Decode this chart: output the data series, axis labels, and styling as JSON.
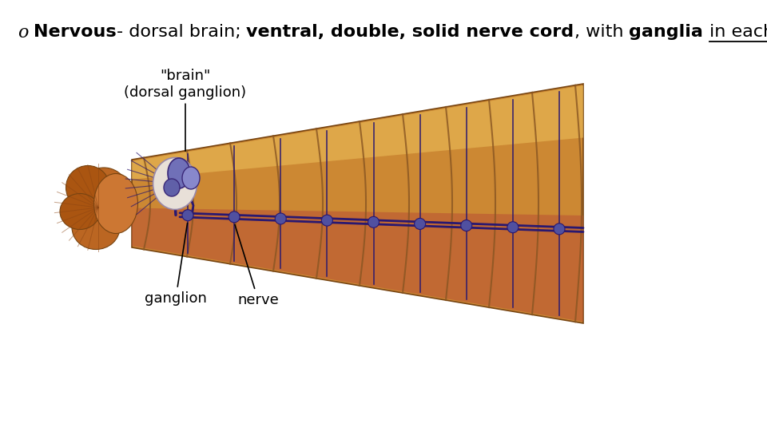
{
  "background_color": "#ffffff",
  "bullet_char": "o",
  "text_segments": [
    {
      "text": "Nervous",
      "bold": true,
      "underline": false
    },
    {
      "text": "- dorsal brain; ",
      "bold": false,
      "underline": false
    },
    {
      "text": "ventral, double, solid nerve cord",
      "bold": true,
      "underline": false
    },
    {
      "text": ", with ",
      "bold": false,
      "underline": false
    },
    {
      "text": "ganglia ",
      "bold": true,
      "underline": false
    },
    {
      "text": "in each segment",
      "bold": false,
      "underline": true
    },
    {
      "text": ".",
      "bold": false,
      "underline": false
    }
  ],
  "text_fontsize": 16,
  "annotation_fontsize": 12,
  "body_colors": {
    "main_orange": "#CC7722",
    "light_orange": "#E8A855",
    "highlight": "#F0C870",
    "dark_orange": "#AA5511",
    "mid_orange": "#C86030",
    "segment_line": "#884422",
    "nerve_color": "#3A2878",
    "brain_main": "#8878C0",
    "brain_light": "#C0B0E0",
    "brain_dark": "#4A3880",
    "head_brown": "#996633",
    "ventral_stripe": "#C05040"
  }
}
